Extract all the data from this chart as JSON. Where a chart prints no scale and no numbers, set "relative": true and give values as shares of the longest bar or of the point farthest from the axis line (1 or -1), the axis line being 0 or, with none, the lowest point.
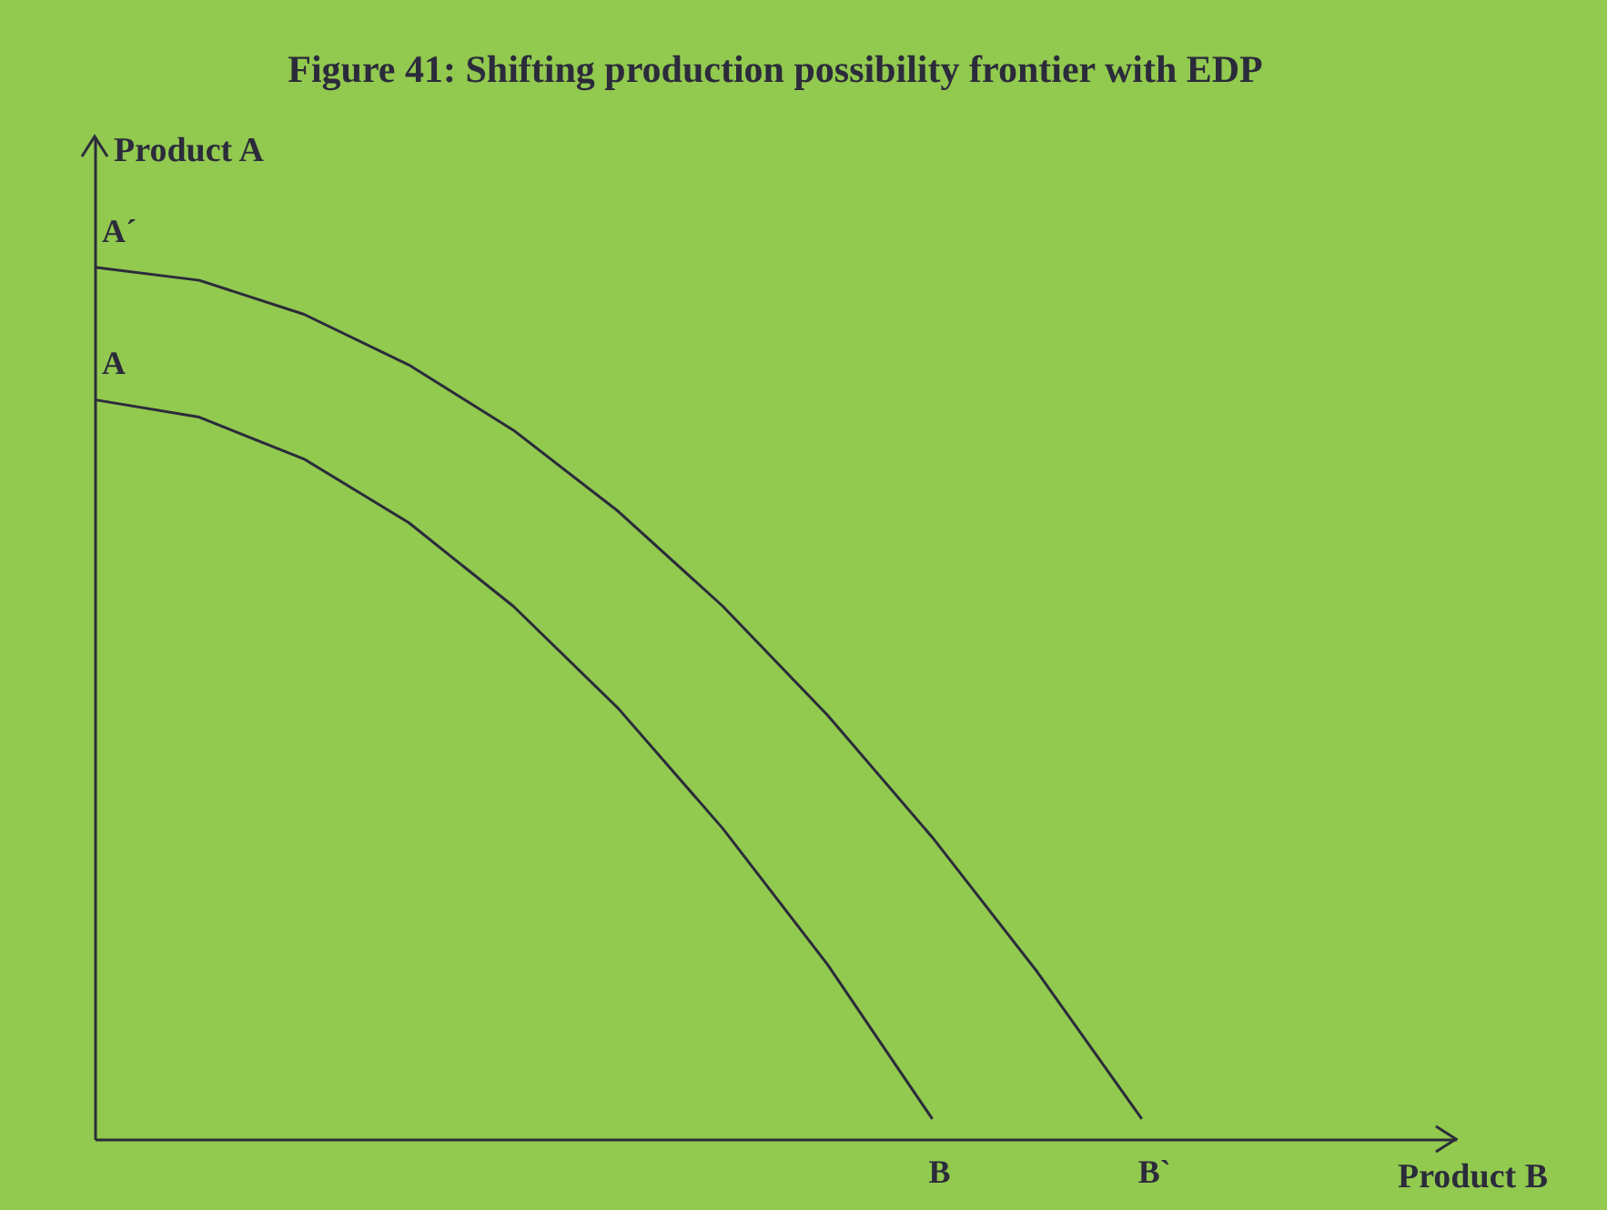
{
  "chart_data": {
    "type": "line",
    "title": "Figure 41: Shifting production possibility frontier with EDP",
    "xlabel": "Product B",
    "ylabel": "Product A",
    "relative": true,
    "legend": false,
    "marker": "none",
    "line_style": "solid",
    "categories": [
      null,
      null,
      null,
      null,
      null,
      null,
      null,
      null,
      null,
      null,
      null,
      null,
      null,
      null
    ],
    "series": [
      {
        "color": "#2b2b3b",
        "values": [
          1.0,
          0.985,
          0.946,
          0.888,
          0.813,
          0.72,
          0.611,
          0.486,
          0.346,
          0.192,
          0.023,
          null,
          null,
          null
        ]
      },
      {
        "color": "#2b2b3b",
        "values": [
          0.848,
          0.828,
          0.78,
          0.707,
          0.611,
          0.494,
          0.356,
          0.2,
          0.023,
          null,
          null,
          null,
          null,
          null
        ]
      }
    ],
    "annotations": [
      "A´",
      "A",
      "B",
      "B`"
    ]
  }
}
